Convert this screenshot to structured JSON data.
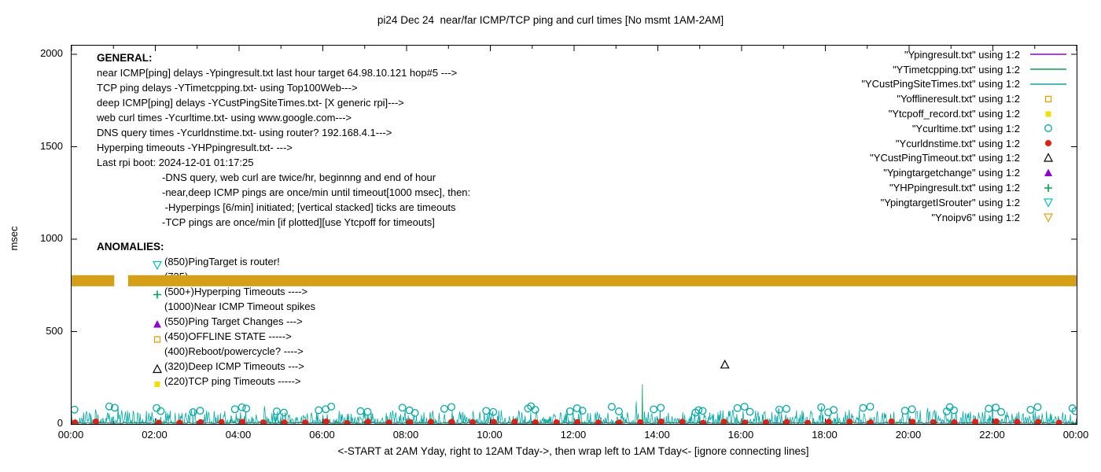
{
  "title": "pi24 Dec 24  near/far ICMP/TCP ping and curl times [No msmt 1AM-2AM]",
  "xlabel": "<-START at 2AM Yday, right to 12AM Tday->, then wrap left to 1AM Tday<- [ignore connecting lines]",
  "ylabel": "msec",
  "general": {
    "heading": "GENERAL:",
    "lines": [
      "near ICMP[ping] delays -Ypingresult.txt last hour target 64.98.10.121 hop#5 --->",
      "TCP ping delays -YTimetcpping.txt- using Top100Web--->",
      "deep ICMP[ping] delays -YCustPingSiteTimes.txt- [X generic rpi]--->",
      "web curl times -Ycurltime.txt- using www.google.com--->",
      "DNS query times -Ycurldnstime.txt- using router? 192.168.4.1--->",
      "Hyperping timeouts -YHPpingresult.txt- --->",
      "Last rpi boot: 2024-12-01 01:17:25"
    ],
    "notes": [
      "-DNS query, web curl are twice/hr, beginnng and end of hour",
      "-near,deep ICMP pings are once/min until timeout[1000 msec], then:",
      " -Hyperpings [6/min] initiated; [vertical stacked] ticks are timeouts",
      "-TCP pings are once/min [if plotted][use Ytcpoff for timeouts]"
    ]
  },
  "anomalies": {
    "heading": "ANOMALIES:",
    "items": [
      {
        "icon": "triangle-down-open",
        "color": "#00c0c0",
        "label": "(850)PingTarget is router!"
      },
      {
        "icon": "triangle-down-open",
        "color": "#e69f00",
        "label": "(735)"
      },
      {
        "icon": "plus",
        "color": "#00a550",
        "label": "(500+)Hyperping Timeouts ---->"
      },
      {
        "icon": "none",
        "color": "",
        "label": "(1000)Near ICMP Timeout spikes"
      },
      {
        "icon": "triangle-filled",
        "color": "#9400d3",
        "label": "(550)Ping Target Changes --->"
      },
      {
        "icon": "square-open",
        "color": "#e69f00",
        "label": "(450)OFFLINE STATE ----->"
      },
      {
        "icon": "none",
        "color": "",
        "label": "(400)Reboot/powercycle? ---->"
      },
      {
        "icon": "triangle-open",
        "color": "#000000",
        "label": "(320)Deep ICMP Timeouts --->"
      },
      {
        "icon": "square-filled",
        "color": "#f0e000",
        "label": "(220)TCP ping Timeouts ----->"
      }
    ]
  },
  "legend": [
    {
      "label": "\"Ypingresult.txt\" using 1:2",
      "marker": "line",
      "color": "#9400d3"
    },
    {
      "label": "\"YTimetcpping.txt\" using 1:2",
      "marker": "line",
      "color": "#00a550"
    },
    {
      "label": "\"YCustPingSiteTimes.txt\" using 1:2",
      "marker": "line",
      "color": "#00aaa8"
    },
    {
      "label": "\"Yofflineresult.txt\" using 1:2",
      "marker": "square-open",
      "color": "#e69f00"
    },
    {
      "label": "\"Ytcpoff_record.txt\" using 1:2",
      "marker": "square-filled",
      "color": "#f0e000"
    },
    {
      "label": "\"Ycurltime.txt\" using 1:2",
      "marker": "circle-open",
      "color": "#00aaa8"
    },
    {
      "label": "\"Ycurldnstime.txt\" using 1:2",
      "marker": "circle-filled",
      "color": "#e51e10"
    },
    {
      "label": "\"YCustPingTimeout.txt\" using 1:2",
      "marker": "triangle-open",
      "color": "#000000"
    },
    {
      "label": "\"Ypingtargetchange\" using 1:2",
      "marker": "triangle-filled",
      "color": "#9400d3"
    },
    {
      "label": "\"YHPpingresult.txt\" using 1:2",
      "marker": "plus",
      "color": "#00a550"
    },
    {
      "label": "\"YpingtargetISrouter\" using 1:2",
      "marker": "triangle-down-open",
      "color": "#00c0c0"
    },
    {
      "label": "\"Ynoipv6\" using 1:2",
      "marker": "triangle-down-open",
      "color": "#e69f00"
    }
  ],
  "chart_data": {
    "type": "line",
    "xlim": [
      0,
      24
    ],
    "ylim": [
      0,
      2000
    ],
    "yticks": [
      0,
      500,
      1000,
      1500,
      2000
    ],
    "xticks": [
      "00:00",
      "02:00",
      "04:00",
      "06:00",
      "08:00",
      "10:00",
      "12:00",
      "14:00",
      "16:00",
      "18:00",
      "20:00",
      "22:00",
      "00:00"
    ],
    "x_unit": "hour of day",
    "grid": false,
    "legend_position": "top-right-inside",
    "series": [
      {
        "name": "Ypingresult.txt",
        "role": "near ICMP ping delay",
        "type": "line",
        "color": "#9400d3",
        "noise": {
          "base": 3,
          "amp": 7,
          "pow": 2,
          "seed": 101,
          "step": 0.03
        }
      },
      {
        "name": "YCustPingSiteTimes.txt",
        "role": "deep ICMP ping delay",
        "type": "line",
        "color": "#00aaa8",
        "noise": {
          "base": 3,
          "amp": 72,
          "pow": 3,
          "seed": 303,
          "step": 0.015,
          "spike_p": 0.012,
          "spike_amp": 70
        }
      },
      {
        "name": "YTimetcpping.txt",
        "role": "TCP ping delay",
        "type": "line",
        "color": "#00a550",
        "noise": {
          "base": 2,
          "amp": 10,
          "pow": 2,
          "seed": 202,
          "step": 0.02,
          "spike_p": 0.006,
          "spike_amp": 28
        },
        "events": [
          {
            "x": 13.63,
            "y": 215
          }
        ]
      },
      {
        "name": "Ycurltime.txt",
        "role": "web curl time, twice per hour",
        "type": "points",
        "marker": "circle-open",
        "color": "#00aaa8",
        "points": [
          [
            0.07,
            78
          ],
          [
            0.9,
            95
          ],
          [
            1.03,
            88
          ],
          [
            2.03,
            86
          ],
          [
            2.13,
            70
          ],
          [
            2.9,
            64
          ],
          [
            3.07,
            72
          ],
          [
            3.9,
            80
          ],
          [
            4.07,
            90
          ],
          [
            4.17,
            84
          ],
          [
            4.9,
            68
          ],
          [
            5.07,
            62
          ],
          [
            5.9,
            75
          ],
          [
            6.07,
            80
          ],
          [
            6.2,
            94
          ],
          [
            6.9,
            70
          ],
          [
            7.07,
            66
          ],
          [
            7.9,
            88
          ],
          [
            8.07,
            74
          ],
          [
            8.2,
            60
          ],
          [
            8.9,
            82
          ],
          [
            9.07,
            92
          ],
          [
            9.9,
            71
          ],
          [
            10.07,
            65
          ],
          [
            10.9,
            84
          ],
          [
            10.97,
            96
          ],
          [
            11.07,
            77
          ],
          [
            11.9,
            69
          ],
          [
            12.07,
            85
          ],
          [
            12.2,
            72
          ],
          [
            12.9,
            93
          ],
          [
            13.07,
            68
          ],
          [
            13.9,
            79
          ],
          [
            14.07,
            88
          ],
          [
            14.9,
            62
          ],
          [
            14.97,
            75
          ],
          [
            15.07,
            71
          ],
          [
            15.9,
            86
          ],
          [
            16.07,
            93
          ],
          [
            16.2,
            66
          ],
          [
            16.9,
            78
          ],
          [
            17.07,
            82
          ],
          [
            17.9,
            90
          ],
          [
            18.07,
            63
          ],
          [
            18.2,
            76
          ],
          [
            18.9,
            87
          ],
          [
            19.07,
            94
          ],
          [
            19.9,
            72
          ],
          [
            20.07,
            80
          ],
          [
            20.9,
            68
          ],
          [
            20.97,
            91
          ],
          [
            21.07,
            74
          ],
          [
            21.9,
            83
          ],
          [
            22.07,
            89
          ],
          [
            22.2,
            65
          ],
          [
            22.9,
            77
          ],
          [
            23.07,
            92
          ],
          [
            23.9,
            85
          ],
          [
            23.97,
            70
          ]
        ]
      },
      {
        "name": "Ycurldnstime.txt",
        "role": "DNS query time, twice per hour",
        "type": "points",
        "marker": "circle-filled",
        "color": "#e51e10",
        "periodic": {
          "start": 0.08,
          "end": 23.6,
          "step": 0.5,
          "base": 5,
          "jitter": 8,
          "seed": 404,
          "skip": [
            [
              1,
              2
            ]
          ]
        },
        "points": []
      },
      {
        "name": "YCustPingTimeout.txt",
        "role": "deep ICMP timeout marker",
        "type": "points",
        "marker": "triangle-open",
        "color": "#000000",
        "points": [
          [
            15.6,
            320
          ]
        ]
      },
      {
        "name": "Yofflineresult.txt",
        "type": "points",
        "marker": "square-open",
        "color": "#e69f00",
        "points": []
      },
      {
        "name": "Ytcpoff_record.txt",
        "type": "points",
        "marker": "square-filled",
        "color": "#f0e000",
        "points": []
      },
      {
        "name": "Ypingtargetchange",
        "type": "points",
        "marker": "triangle-filled",
        "color": "#9400d3",
        "points": []
      },
      {
        "name": "YHPpingresult.txt",
        "type": "points",
        "marker": "plus",
        "color": "#00a550",
        "points": []
      },
      {
        "name": "YpingtargetISrouter",
        "type": "points",
        "marker": "triangle-down-open",
        "color": "#00c0c0",
        "points": []
      },
      {
        "name": "Ynoipv6",
        "role": "no-ipv6 state band at ~775 msec, gap during 1AM no-measurement window",
        "type": "band",
        "color": "#d4a017",
        "y": 775,
        "half": 30,
        "segments": [
          [
            0,
            1.02
          ],
          [
            1.35,
            24
          ]
        ]
      }
    ]
  }
}
